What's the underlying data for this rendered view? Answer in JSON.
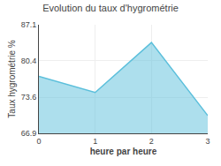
{
  "chart_data": {
    "type": "area",
    "title": "Evolution du taux d'hygrométrie",
    "xlabel": "heure par heure",
    "ylabel": "Taux hygrométrie %",
    "x": [
      0,
      1,
      2,
      3
    ],
    "values": [
      77.5,
      74.5,
      83.8,
      70.2
    ],
    "color": "#5bbfdb",
    "xlim": [
      0,
      3
    ],
    "ylim": [
      66.9,
      87.1
    ],
    "xticks": [
      0,
      1,
      2,
      3
    ],
    "yticks": [
      66.9,
      73.6,
      80.4,
      87.1
    ],
    "grid": true
  }
}
